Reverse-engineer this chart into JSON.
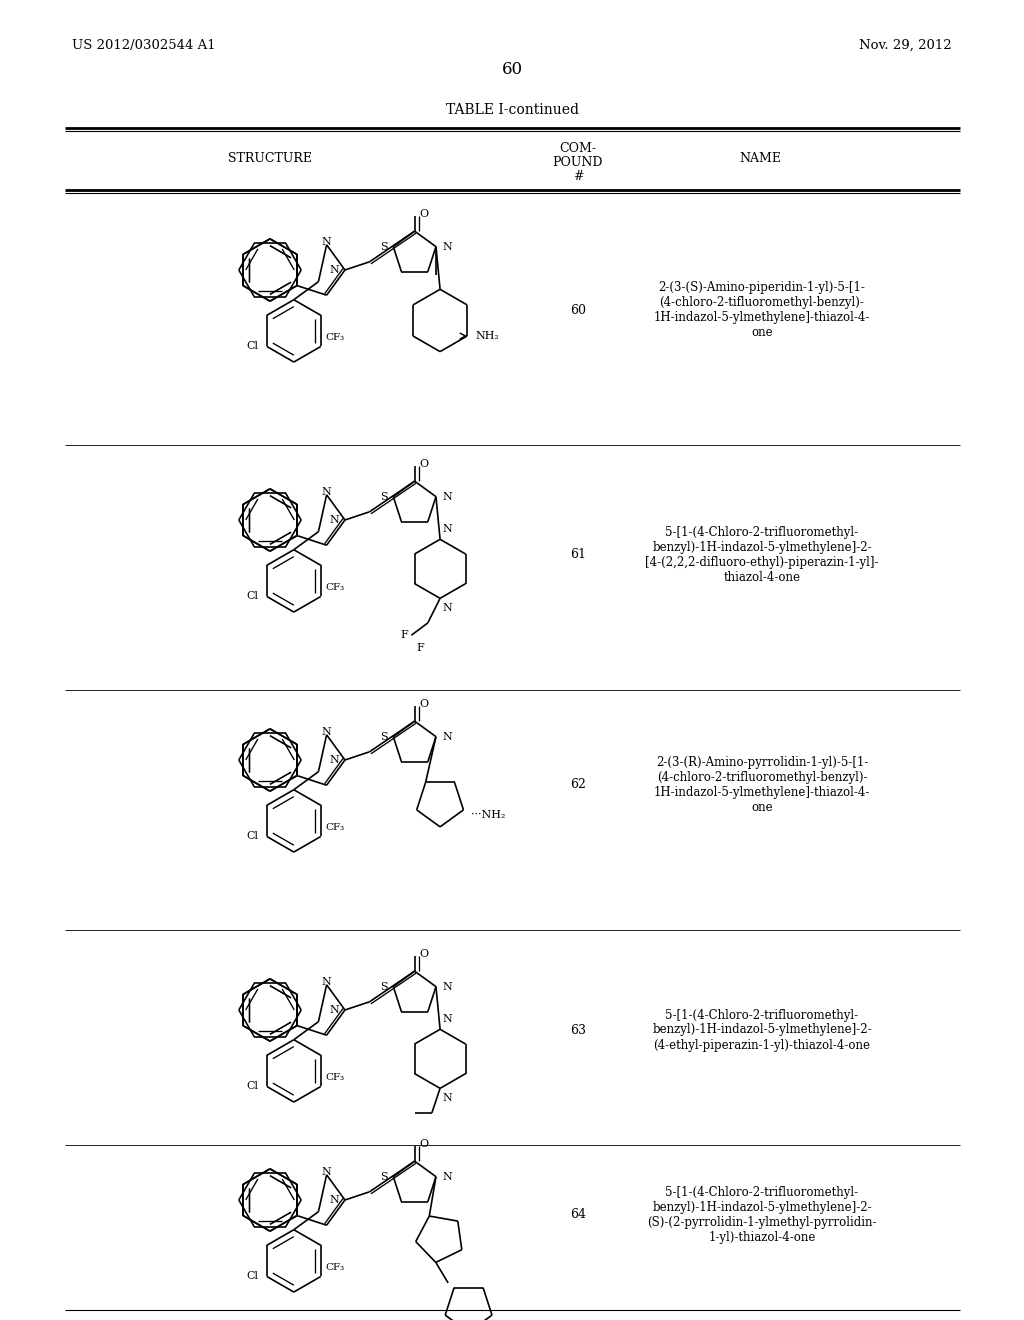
{
  "header_left": "US 2012/0302544 A1",
  "header_right": "Nov. 29, 2012",
  "page_number": "60",
  "table_title": "TABLE I-continued",
  "col1_header": "STRUCTURE",
  "col2_header_lines": [
    "COM-",
    "POUND",
    "#"
  ],
  "col3_header": "NAME",
  "compound_numbers": [
    "60",
    "61",
    "62",
    "63",
    "64"
  ],
  "compound_names": [
    "2-(3-(S)-Amino-piperidin-1-yl)-5-[1-\n(4-chloro-2-tifluoromethyl-benzyl)-\n1H-indazol-5-ylmethylene]-thiazol-4-\none",
    "5-[1-(4-Chloro-2-trifluoromethyl-\nbenzyl)-1H-indazol-5-ylmethylene]-2-\n[4-(2,2,2-difluoro-ethyl)-piperazin-1-yl]-\nthiazol-4-one",
    "2-(3-(R)-Amino-pyrrolidin-1-yl)-5-[1-\n(4-chloro-2-trifluoromethyl-benzyl)-\n1H-indazol-5-ylmethylene]-thiazol-4-\none",
    "5-[1-(4-Chloro-2-trifluoromethyl-\nbenzyl)-1H-indazol-5-ylmethylene]-2-\n(4-ethyl-piperazin-1-yl)-thiazol-4-one",
    "5-[1-(4-Chloro-2-trifluoromethyl-\nbenzyl)-1H-indazol-5-ylmethylene]-2-\n(S)-(2-pyrrolidin-1-ylmethyl-pyrrolidin-\n1-yl)-thiazol-4-one"
  ],
  "bg_color": "#ffffff",
  "text_color": "#000000"
}
